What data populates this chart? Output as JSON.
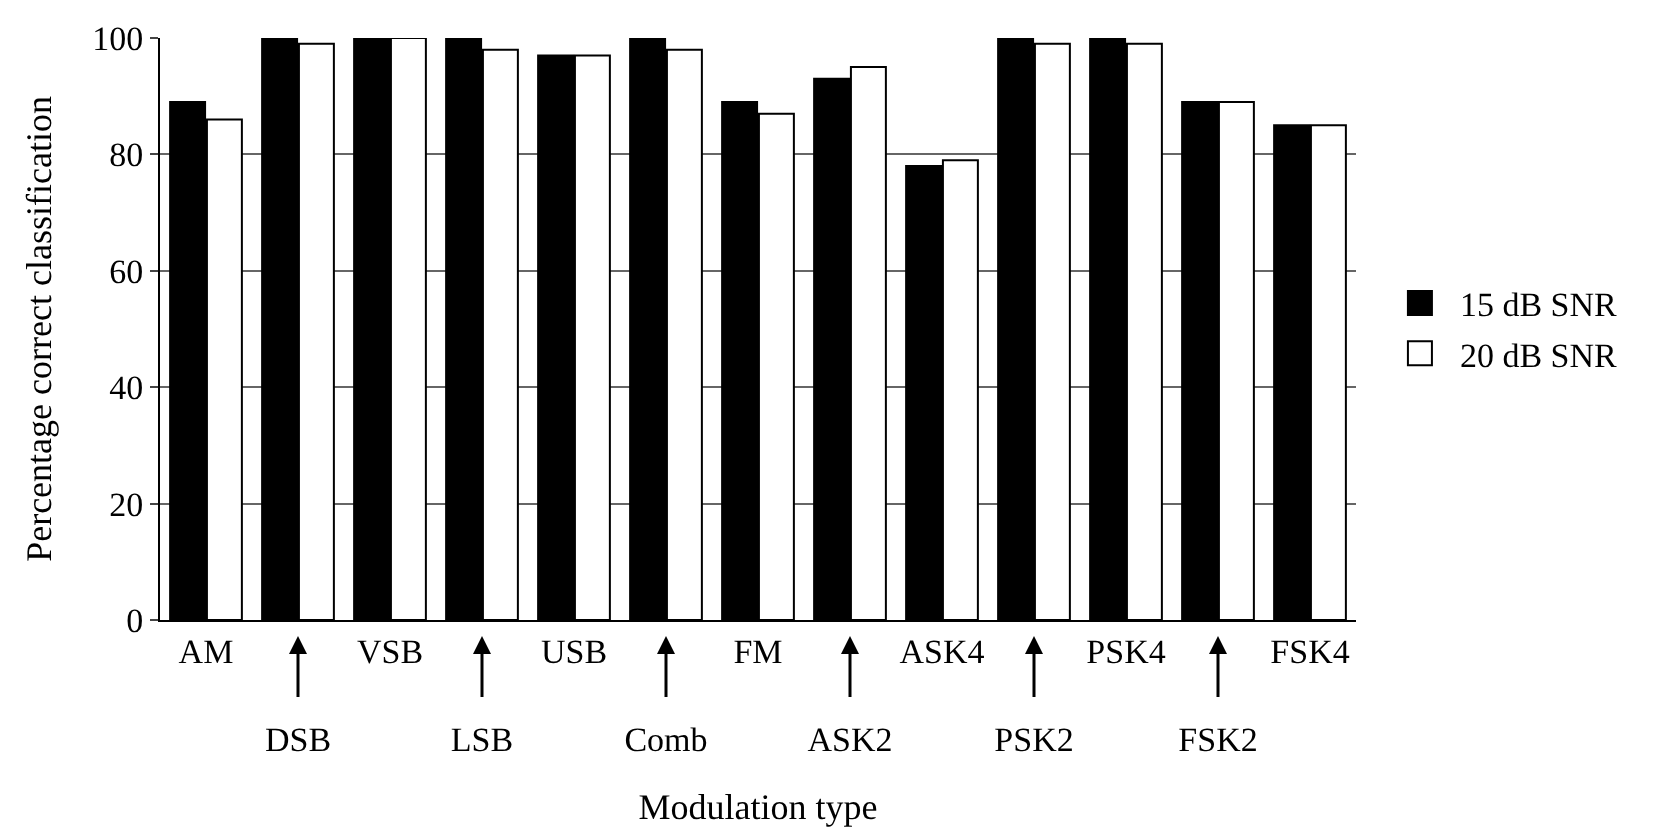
{
  "chart_data": {
    "type": "bar",
    "xlabel": "Modulation type",
    "ylabel": "Percentage correct classification",
    "categories": [
      "AM",
      "DSB",
      "VSB",
      "LSB",
      "USB",
      "Comb",
      "FM",
      "ASK2",
      "ASK4",
      "PSK2",
      "PSK4",
      "FSK2",
      "FSK4"
    ],
    "series": [
      {
        "name": "15 dB SNR",
        "color": "#000000",
        "values": [
          89,
          100,
          100,
          100,
          97,
          100,
          89,
          93,
          78,
          100,
          100,
          89,
          85
        ]
      },
      {
        "name": "20 dB SNR",
        "color": "#ffffff",
        "values": [
          86,
          99,
          100,
          98,
          97,
          98,
          87,
          95,
          79,
          99,
          99,
          89,
          85
        ]
      }
    ],
    "ylim": [
      0,
      100
    ],
    "yticks": [
      0,
      20,
      40,
      60,
      80,
      100
    ],
    "grid": "y",
    "legend": "right"
  }
}
